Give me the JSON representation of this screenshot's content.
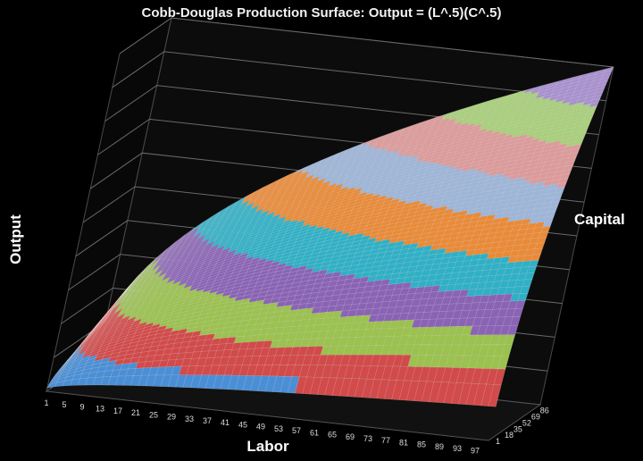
{
  "chart_data": {
    "type": "surface",
    "title": "Cobb-Douglas Production Surface: Output = (L^.5)(C^.5)",
    "xlabel": "Labor",
    "ylabel": "Output",
    "zlabel": "Capital",
    "formula": "Output = L^0.5 * C^0.5",
    "x_ticks": [
      "1",
      "5",
      "9",
      "13",
      "17",
      "21",
      "25",
      "29",
      "33",
      "37",
      "41",
      "45",
      "49",
      "53",
      "57",
      "61",
      "65",
      "69",
      "73",
      "77",
      "81",
      "85",
      "89",
      "93",
      "97"
    ],
    "z_ticks": [
      "1",
      "18",
      "35",
      "52",
      "69",
      "86"
    ],
    "x_range": [
      1,
      100
    ],
    "z_range": [
      1,
      100
    ],
    "y_range": [
      0,
      100
    ],
    "grid": true,
    "band_colors": [
      "#4a8fd6",
      "#d24a4a",
      "#9bc14f",
      "#8a63b5",
      "#2fb0c6",
      "#ea8a37",
      "#9db5d8",
      "#dd9a9a",
      "#a9cf7b",
      "#a890cf"
    ]
  }
}
